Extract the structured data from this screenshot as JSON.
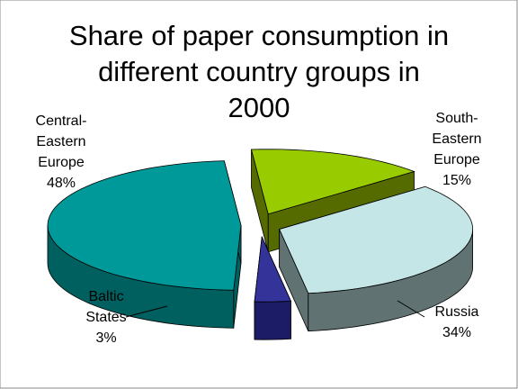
{
  "chart_data": {
    "type": "pie3d",
    "title": "Share of paper consumption in different country groups in 2000",
    "categories": [
      "South-Eastern Europe",
      "Russia",
      "Baltic States",
      "Central-Eastern Europe"
    ],
    "values": [
      15,
      34,
      3,
      48
    ],
    "value_labels": [
      "15%",
      "34%",
      "3%",
      "48%"
    ],
    "colors": [
      "#99cc00",
      "#c4e6e6",
      "#333399",
      "#009999"
    ],
    "side_colors": [
      "#556b00",
      "#607272",
      "#1c1c66",
      "#006060"
    ]
  }
}
